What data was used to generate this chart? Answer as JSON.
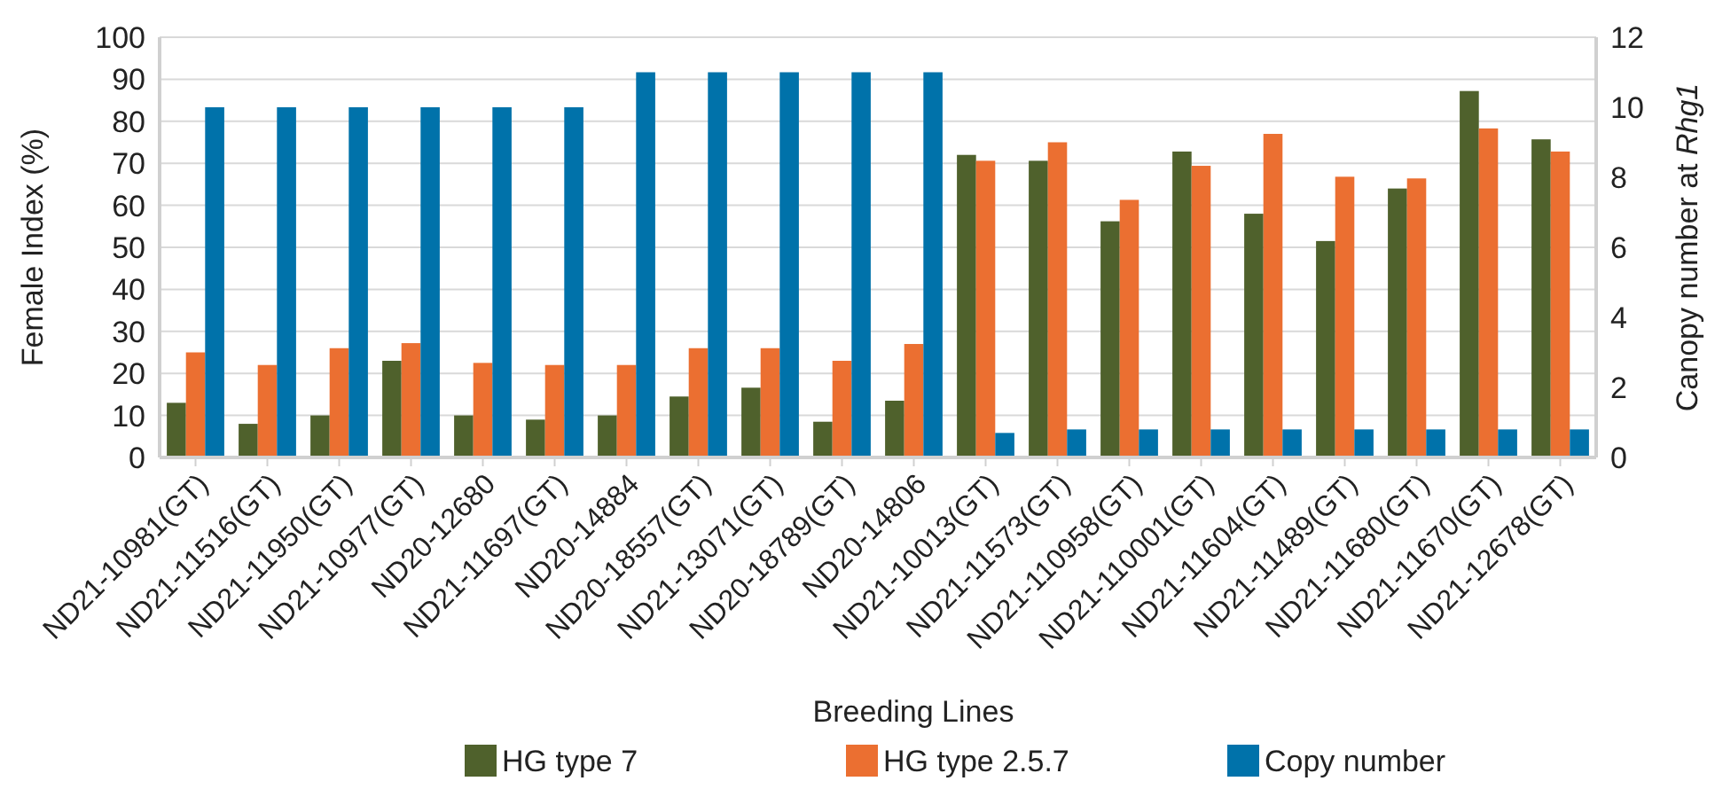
{
  "chart_data": {
    "type": "bar",
    "xlabel": "Breeding Lines",
    "ylabel": "Female Index (%)",
    "y2label": "Canopy number at Rhg1",
    "categories": [
      "ND21-10981(GT)",
      "ND21-11516(GT)",
      "ND21-11950(GT)",
      "ND21-10977(GT)",
      "ND20-12680",
      "ND21-11697(GT)",
      "ND20-14884",
      "ND20-18557(GT)",
      "ND21-13071(GT)",
      "ND20-18789(GT)",
      "ND20-14806",
      "ND21-10013(GT)",
      "ND21-11573(GT)",
      "ND21-110958(GT)",
      "ND21-110001(GT)",
      "ND21-11604(GT)",
      "ND21-11489(GT)",
      "ND21-11680(GT)",
      "ND21-11670(GT)",
      "ND21-12678(GT)"
    ],
    "series": [
      {
        "name": "HG type 7",
        "color": "#4f612c",
        "values": [
          13,
          8,
          10,
          23,
          10,
          9,
          10,
          14.5,
          16.6,
          8.5,
          13.5,
          72,
          70.6,
          56.2,
          72.8,
          58,
          51.5,
          64,
          87.2,
          75.7
        ]
      },
      {
        "name": "HG type 2.5.7",
        "color": "#eb6f31",
        "values": [
          25,
          22,
          26,
          27.2,
          22.5,
          22,
          22,
          26,
          26,
          23,
          27,
          70.6,
          75,
          61.3,
          69.4,
          77,
          66.8,
          66.4,
          78.3,
          72.8
        ]
      },
      {
        "name": "Copy number",
        "color": "#0072aa",
        "axis": "y2",
        "values": [
          10,
          10,
          10,
          10,
          10,
          10,
          11,
          11,
          11,
          11,
          11,
          0.7,
          0.8,
          0.8,
          0.8,
          0.8,
          0.8,
          0.8,
          0.8,
          0.8
        ]
      }
    ],
    "ylim": [
      0,
      100
    ],
    "yticks": [
      0,
      10,
      20,
      30,
      40,
      50,
      60,
      70,
      80,
      90,
      100
    ],
    "y2lim": [
      0,
      12
    ],
    "y2ticks": [
      0,
      2,
      4,
      6,
      8,
      10,
      12
    ],
    "grid": "y",
    "legend": "bottom"
  }
}
